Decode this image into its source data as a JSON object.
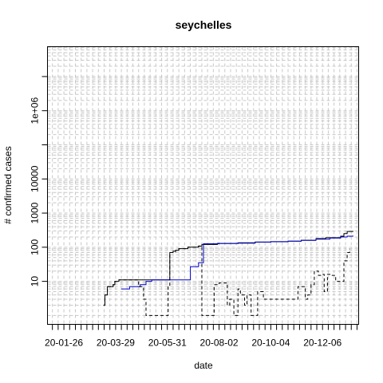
{
  "chart_data": {
    "type": "line",
    "title": "seychelles",
    "xlabel": "date",
    "ylabel": "# confirmed cases",
    "x_tick_labels": [
      "20-01-26",
      "20-03-29",
      "20-05-31",
      "20-08-02",
      "20-10-04",
      "20-12-06"
    ],
    "y_tick_labels": [
      {
        "value": 10,
        "label": "10"
      },
      {
        "value": 100,
        "label": "100"
      },
      {
        "value": 1000,
        "label": "1000"
      },
      {
        "value": 10000,
        "label": "10000"
      },
      {
        "value": 1000000,
        "label": "1e+06"
      }
    ],
    "y_scale": "log",
    "ylim": [
      0.55,
      75000000
    ],
    "xlim": [
      "2020-01-06",
      "2021-01-19"
    ],
    "grid": true,
    "series": [
      {
        "style": "solid",
        "color": "#000000",
        "points": [
          [
            "2020-03-14",
            2
          ],
          [
            "2020-03-16",
            4
          ],
          [
            "2020-03-19",
            7
          ],
          [
            "2020-03-26",
            8
          ],
          [
            "2020-03-28",
            10
          ],
          [
            "2020-04-02",
            11
          ],
          [
            "2020-06-01",
            11
          ],
          [
            "2020-06-03",
            70
          ],
          [
            "2020-06-07",
            77
          ],
          [
            "2020-06-10",
            81
          ],
          [
            "2020-06-14",
            91
          ],
          [
            "2020-06-25",
            100
          ],
          [
            "2020-07-08",
            108
          ],
          [
            "2020-07-12",
            120
          ],
          [
            "2020-07-31",
            130
          ],
          [
            "2020-08-25",
            132
          ],
          [
            "2020-09-15",
            141
          ],
          [
            "2020-10-04",
            145
          ],
          [
            "2020-10-25",
            150
          ],
          [
            "2020-11-10",
            160
          ],
          [
            "2020-11-28",
            179
          ],
          [
            "2020-12-10",
            190
          ],
          [
            "2020-12-28",
            210
          ],
          [
            "2021-01-01",
            250
          ],
          [
            "2021-01-05",
            290
          ],
          [
            "2021-01-12",
            300
          ]
        ]
      },
      {
        "style": "solid",
        "color": "#0000cc",
        "points": [
          [
            "2020-04-05",
            6
          ],
          [
            "2020-04-15",
            7
          ],
          [
            "2020-04-28",
            8
          ],
          [
            "2020-05-05",
            10
          ],
          [
            "2020-05-12",
            11
          ],
          [
            "2020-06-25",
            11
          ],
          [
            "2020-06-28",
            27
          ],
          [
            "2020-07-08",
            35
          ],
          [
            "2020-07-14",
            126
          ],
          [
            "2020-08-02",
            128
          ],
          [
            "2020-08-25",
            135
          ],
          [
            "2020-09-15",
            141
          ],
          [
            "2020-10-04",
            145
          ],
          [
            "2020-10-25",
            150
          ],
          [
            "2020-11-10",
            158
          ],
          [
            "2020-11-28",
            172
          ],
          [
            "2020-12-15",
            185
          ],
          [
            "2020-12-28",
            200
          ],
          [
            "2021-01-05",
            210
          ],
          [
            "2021-01-12",
            220
          ]
        ]
      },
      {
        "style": "dashed",
        "color": "#000000",
        "points": [
          [
            "2020-03-16",
            4
          ],
          [
            "2020-03-19",
            7
          ],
          [
            "2020-03-26",
            8
          ],
          [
            "2020-03-28",
            10
          ],
          [
            "2020-04-02",
            11
          ],
          [
            "2020-04-22",
            11
          ],
          [
            "2020-04-26",
            7
          ],
          [
            "2020-05-02",
            3
          ],
          [
            "2020-05-05",
            1
          ],
          [
            "2020-05-12",
            1
          ],
          [
            "2020-05-20",
            1
          ],
          [
            "2020-06-01",
            7
          ],
          [
            "2020-06-03",
            70
          ],
          [
            "2020-06-10",
            81
          ],
          [
            "2020-06-14",
            91
          ],
          [
            "2020-06-25",
            100
          ],
          [
            "2020-07-08",
            108
          ],
          [
            "2020-07-12",
            1
          ],
          [
            "2020-07-18",
            1
          ],
          [
            "2020-07-24",
            1
          ],
          [
            "2020-07-27",
            8
          ],
          [
            "2020-08-02",
            9
          ],
          [
            "2020-08-10",
            9
          ],
          [
            "2020-08-12",
            2
          ],
          [
            "2020-08-15",
            3
          ],
          [
            "2020-08-20",
            1
          ],
          [
            "2020-08-25",
            6
          ],
          [
            "2020-08-28",
            4
          ],
          [
            "2020-09-02",
            2
          ],
          [
            "2020-09-05",
            4
          ],
          [
            "2020-09-10",
            1
          ],
          [
            "2020-09-15",
            1
          ],
          [
            "2020-09-18",
            5
          ],
          [
            "2020-09-25",
            3
          ],
          [
            "2020-10-02",
            3
          ],
          [
            "2020-10-08",
            3
          ],
          [
            "2020-10-15",
            3
          ],
          [
            "2020-10-25",
            3
          ],
          [
            "2020-11-03",
            3
          ],
          [
            "2020-11-06",
            7
          ],
          [
            "2020-11-10",
            7
          ],
          [
            "2020-11-15",
            3
          ],
          [
            "2020-11-18",
            4
          ],
          [
            "2020-11-22",
            8
          ],
          [
            "2020-11-26",
            20
          ],
          [
            "2020-12-01",
            15
          ],
          [
            "2020-12-06",
            16
          ],
          [
            "2020-12-08",
            5
          ],
          [
            "2020-12-12",
            16
          ],
          [
            "2020-12-16",
            15
          ],
          [
            "2020-12-22",
            10
          ],
          [
            "2020-12-28",
            10
          ],
          [
            "2021-01-01",
            40
          ],
          [
            "2021-01-05",
            70
          ],
          [
            "2021-01-08",
            90
          ]
        ]
      }
    ]
  }
}
